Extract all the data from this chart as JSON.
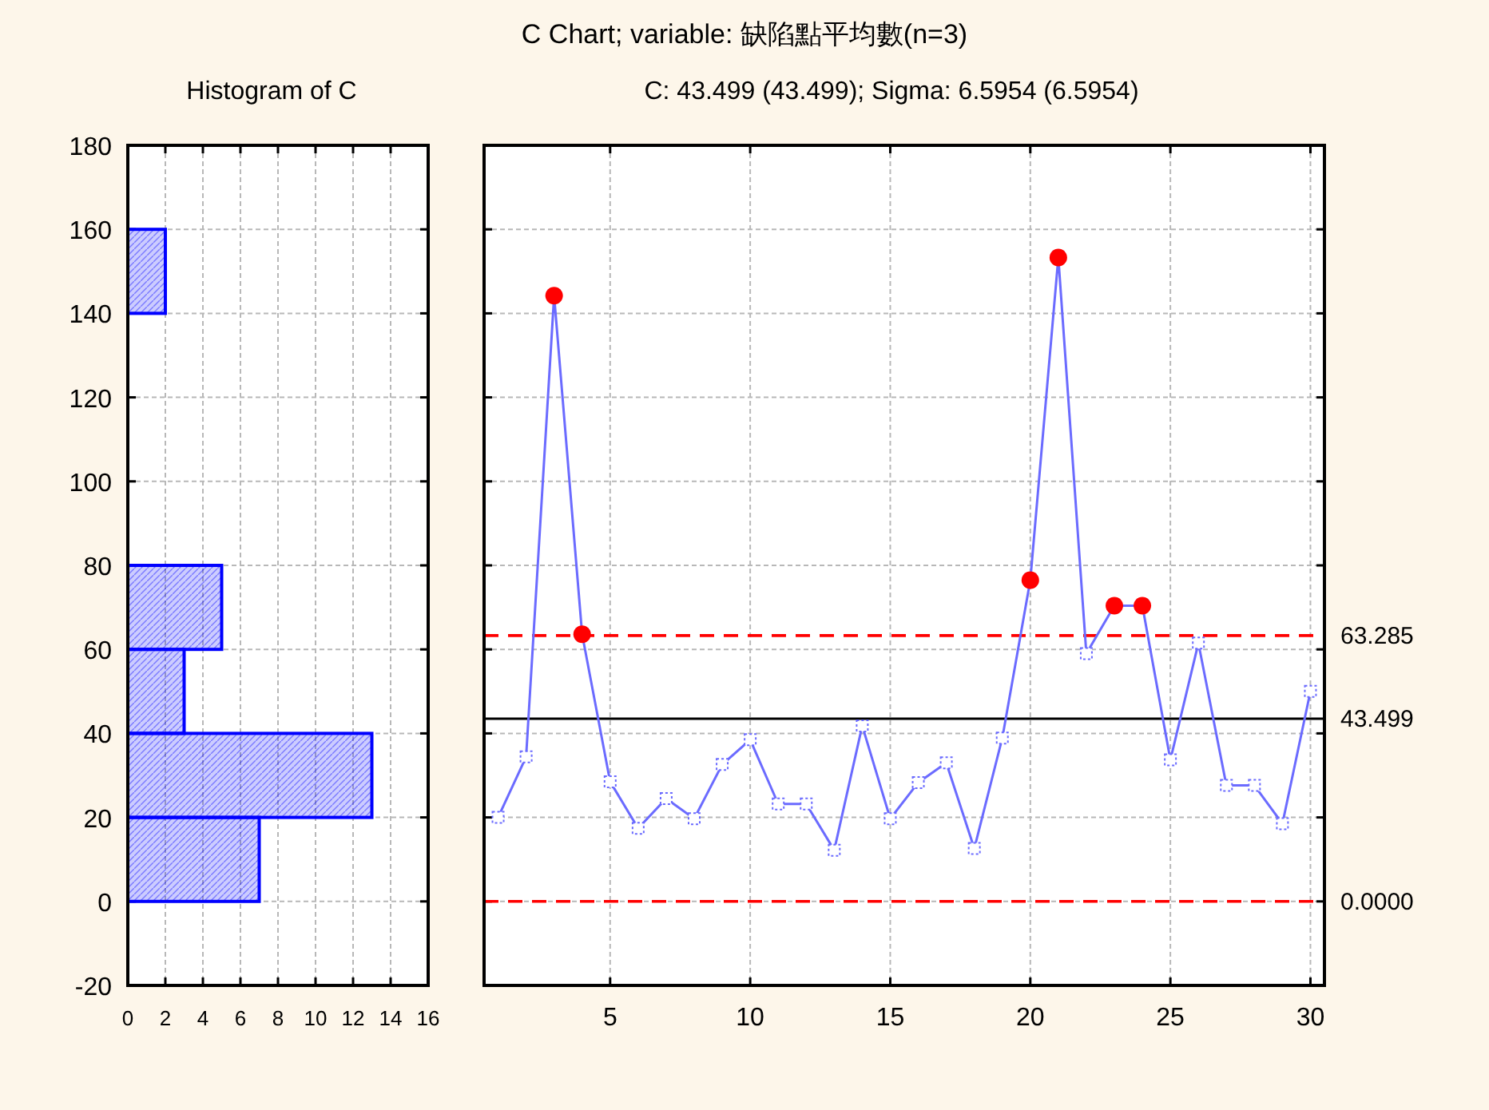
{
  "chart_data": [
    {
      "type": "histogram",
      "title": "Histogram of C",
      "orientation": "horizontal",
      "bins": [
        0,
        20,
        40,
        60,
        80,
        100,
        120,
        140,
        160
      ],
      "values": [
        7,
        13,
        3,
        5,
        0,
        0,
        0,
        2
      ],
      "color": "#0000ff",
      "xlim": [
        0,
        16
      ],
      "xticks": [
        0,
        2,
        4,
        6,
        8,
        10,
        12,
        14,
        16
      ],
      "ylim": [
        -20,
        180
      ],
      "yticks": [
        -20,
        0,
        20,
        40,
        60,
        80,
        100,
        120,
        140,
        160,
        180
      ],
      "grid": true
    },
    {
      "type": "line",
      "title": "C Chart; variable:   缺陷點平均數(n=3)",
      "subtitle": "C: 43.499 (43.499); Sigma: 6.5954 (6.5954)",
      "x": [
        1,
        2,
        3,
        4,
        5,
        6,
        7,
        8,
        9,
        10,
        11,
        12,
        13,
        14,
        15,
        16,
        17,
        18,
        19,
        20,
        21,
        22,
        23,
        24,
        25,
        26,
        27,
        28,
        29,
        30
      ],
      "xlim": [
        0.5,
        30.5
      ],
      "xticks": [
        5,
        10,
        15,
        20,
        25,
        30
      ],
      "ylim": [
        -20,
        180
      ],
      "yticks": [
        -20,
        0,
        20,
        40,
        60,
        80,
        100,
        120,
        140,
        160,
        180
      ],
      "tick_labels": "x",
      "grid": true,
      "marker": "square",
      "series": [
        {
          "color": "#6b6bff",
          "values": [
            20,
            34.4,
            144.2,
            63.6,
            28.5,
            17.4,
            24.5,
            19.7,
            32.6,
            38.5,
            23.2,
            23.2,
            12.2,
            41.8,
            19.7,
            28.3,
            33,
            12.6,
            38.9,
            76.5,
            153.3,
            59,
            70.4,
            70.4,
            33.7,
            61.5,
            27.6,
            27.6,
            18.5,
            50
          ]
        },
        {
          "type": "scatter",
          "marker": "circle",
          "color": "#ff0000",
          "x": [
            3,
            4,
            20,
            21,
            23,
            24
          ],
          "values": [
            144.2,
            63.6,
            76.5,
            153.3,
            70.4,
            70.4
          ]
        }
      ],
      "ref_lines": [
        {
          "axis": "y",
          "value": 63.285,
          "label": "63.285",
          "color": "#ff0000",
          "line_style": "dashed"
        },
        {
          "axis": "y",
          "value": 43.499,
          "label": "43.499",
          "color": "#000000",
          "line_style": "solid"
        },
        {
          "axis": "y",
          "value": 0,
          "label": "0.0000",
          "color": "#ff0000",
          "line_style": "dashed"
        }
      ]
    }
  ]
}
